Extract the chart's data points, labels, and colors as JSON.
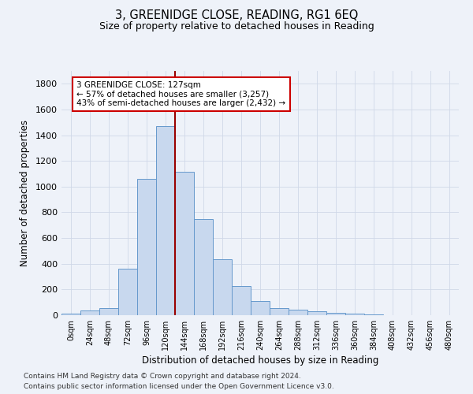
{
  "title": "3, GREENIDGE CLOSE, READING, RG1 6EQ",
  "subtitle": "Size of property relative to detached houses in Reading",
  "xlabel": "Distribution of detached houses by size in Reading",
  "ylabel": "Number of detached properties",
  "bar_color": "#c8d8ee",
  "bar_edge_color": "#6699cc",
  "categories": [
    "0sqm",
    "24sqm",
    "48sqm",
    "72sqm",
    "96sqm",
    "120sqm",
    "144sqm",
    "168sqm",
    "192sqm",
    "216sqm",
    "240sqm",
    "264sqm",
    "288sqm",
    "312sqm",
    "336sqm",
    "360sqm",
    "384sqm",
    "408sqm",
    "432sqm",
    "456sqm",
    "480sqm"
  ],
  "values": [
    10,
    35,
    55,
    360,
    1060,
    1470,
    1115,
    745,
    435,
    225,
    110,
    55,
    45,
    30,
    20,
    15,
    5,
    3,
    2,
    1,
    1
  ],
  "ylim": [
    0,
    1900
  ],
  "yticks": [
    0,
    200,
    400,
    600,
    800,
    1000,
    1200,
    1400,
    1600,
    1800
  ],
  "vline_color": "#990000",
  "property_sqm": 127,
  "bin_size": 24,
  "annotation_line1": "3 GREENIDGE CLOSE: 127sqm",
  "annotation_line2": "← 57% of detached houses are smaller (3,257)",
  "annotation_line3": "43% of semi-detached houses are larger (2,432) →",
  "annotation_box_facecolor": "#ffffff",
  "annotation_box_edgecolor": "#cc0000",
  "footnote1": "Contains HM Land Registry data © Crown copyright and database right 2024.",
  "footnote2": "Contains public sector information licensed under the Open Government Licence v3.0.",
  "background_color": "#eef2f9",
  "grid_color": "#d0d8e8"
}
